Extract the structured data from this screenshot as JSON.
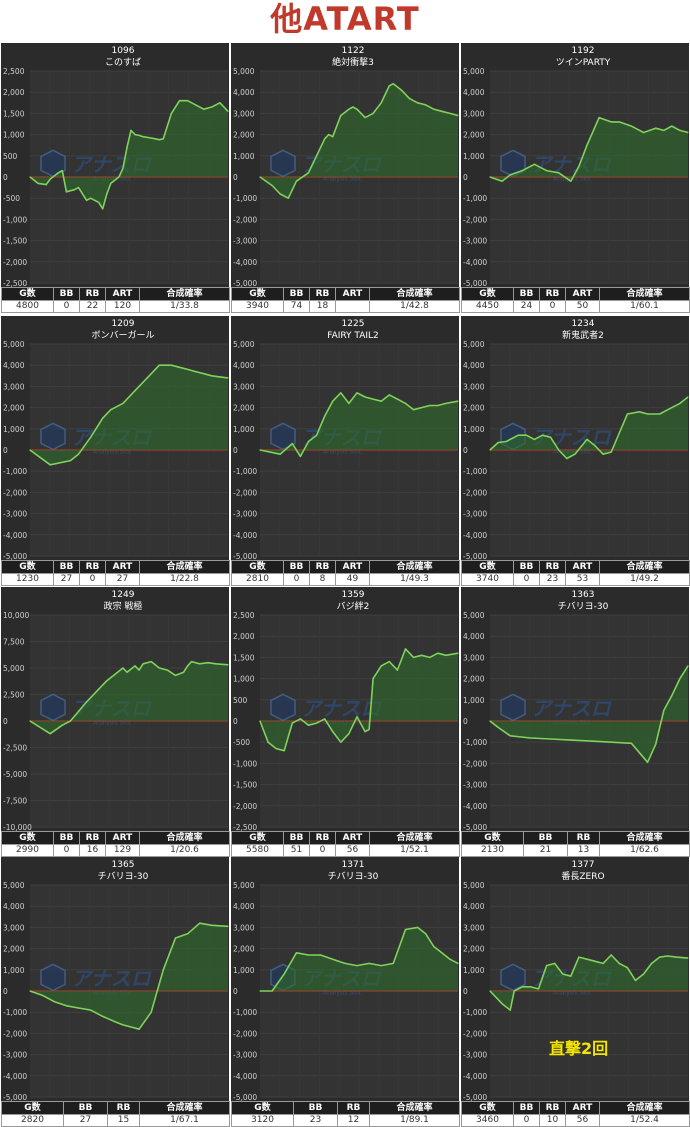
{
  "page": {
    "title": "他ATART"
  },
  "colors": {
    "background": "#2b2b2b",
    "grid": "#3f3f3f",
    "line": "#7fd35a",
    "fill": "#2f6a2b",
    "zero": "#c0392b",
    "title": "#c0392b",
    "note": "#f5e600"
  },
  "watermark": {
    "text": "アナスロ",
    "sub": "Analysis Slot"
  },
  "chart_data": [
    {
      "type": "area",
      "machine_no": "1096",
      "machine_name": "このすば",
      "ylim": [
        -2500,
        2500
      ],
      "ticks": [
        "2,500",
        "2,000",
        "1,500",
        "1,000",
        "500",
        "0",
        "-500",
        "-1,000",
        "-1,500",
        "-2,000",
        "-2,500"
      ],
      "x": [
        0,
        2,
        4,
        5,
        7,
        8,
        9,
        11,
        12,
        14,
        15,
        17,
        18,
        19,
        20,
        22,
        23,
        24,
        25,
        26,
        27,
        28,
        30,
        32,
        33,
        35,
        37,
        39,
        41,
        43,
        45,
        47,
        49
      ],
      "y": [
        0,
        -150,
        -180,
        -50,
        100,
        150,
        -350,
        -300,
        -250,
        -550,
        -500,
        -600,
        -750,
        -400,
        -150,
        0,
        200,
        700,
        1100,
        1000,
        980,
        950,
        920,
        880,
        900,
        1500,
        1800,
        1800,
        1700,
        1600,
        1650,
        1750,
        1550
      ],
      "stats": {
        "headers": [
          "G数",
          "BB",
          "RB",
          "ART",
          "合成確率"
        ],
        "values": [
          "4800",
          "0",
          "22",
          "120",
          "1/33.8"
        ]
      }
    },
    {
      "type": "area",
      "machine_no": "1122",
      "machine_name": "絶対衝撃3",
      "ylim": [
        -5000,
        5000
      ],
      "ticks": [
        "5,000",
        "4,000",
        "3,000",
        "2,000",
        "1,000",
        "0",
        "-1,000",
        "-2,000",
        "-3,000",
        "-4,000",
        "-5,000"
      ],
      "x": [
        0,
        3,
        5,
        7,
        9,
        12,
        14,
        16,
        17,
        18,
        20,
        22,
        23,
        24,
        26,
        28,
        30,
        32,
        33,
        35,
        37,
        39,
        41,
        43,
        45,
        47,
        49
      ],
      "y": [
        0,
        -400,
        -800,
        -1000,
        -200,
        200,
        1000,
        1800,
        2000,
        1900,
        2900,
        3200,
        3300,
        3200,
        2800,
        3000,
        3500,
        4300,
        4400,
        4100,
        3700,
        3500,
        3400,
        3200,
        3100,
        3000,
        2900
      ],
      "stats": {
        "headers": [
          "G数",
          "BB",
          "RB",
          "ART",
          "合成確率"
        ],
        "values": [
          "3940",
          "74",
          "18",
          "",
          "1/42.8"
        ]
      }
    },
    {
      "type": "area",
      "machine_no": "1192",
      "machine_name": "ツインPARTY",
      "ylim": [
        -5000,
        5000
      ],
      "ticks": [
        "5,000",
        "4,000",
        "3,000",
        "2,000",
        "1,000",
        "0",
        "-1,000",
        "-2,000",
        "-3,000",
        "-4,000",
        "-5,000"
      ],
      "x": [
        0,
        3,
        5,
        8,
        11,
        14,
        17,
        20,
        22,
        24,
        27,
        30,
        32,
        35,
        38,
        41,
        43,
        45,
        47,
        49
      ],
      "y": [
        0,
        -200,
        100,
        300,
        600,
        300,
        200,
        -200,
        500,
        1500,
        2800,
        2600,
        2600,
        2400,
        2100,
        2300,
        2200,
        2400,
        2200,
        2100
      ],
      "stats": {
        "headers": [
          "G数",
          "BB",
          "RB",
          "ART",
          "合成確率"
        ],
        "values": [
          "4450",
          "24",
          "0",
          "50",
          "1/60.1"
        ]
      }
    },
    {
      "type": "area",
      "machine_no": "1209",
      "machine_name": "ボンバーガール",
      "ylim": [
        -5000,
        5000
      ],
      "ticks": [
        "5,000",
        "4,000",
        "3,000",
        "2,000",
        "1,000",
        "0",
        "-1,000",
        "-2,000",
        "-3,000",
        "-4,000",
        "-5,000"
      ],
      "x": [
        0,
        5,
        10,
        12,
        15,
        18,
        20,
        23,
        26,
        29,
        32,
        35,
        37,
        39,
        41,
        43,
        45,
        47,
        49
      ],
      "y": [
        0,
        -700,
        -500,
        -200,
        600,
        1500,
        1900,
        2200,
        2800,
        3400,
        4000,
        4000,
        3900,
        3800,
        3700,
        3600,
        3500,
        3450,
        3400
      ],
      "stats": {
        "headers": [
          "G数",
          "BB",
          "RB",
          "ART",
          "合成確率"
        ],
        "values": [
          "1230",
          "27",
          "0",
          "27",
          "1/22.8"
        ]
      }
    },
    {
      "type": "area",
      "machine_no": "1225",
      "machine_name": "FAIRY TAIL2",
      "ylim": [
        -5000,
        5000
      ],
      "ticks": [
        "5,000",
        "4,000",
        "3,000",
        "2,000",
        "1,000",
        "0",
        "-1,000",
        "-2,000",
        "-3,000",
        "-4,000",
        "-5,000"
      ],
      "x": [
        0,
        5,
        8,
        10,
        12,
        14,
        16,
        18,
        20,
        22,
        24,
        26,
        28,
        30,
        32,
        34,
        36,
        38,
        40,
        42,
        44,
        46,
        49
      ],
      "y": [
        0,
        -200,
        300,
        -300,
        400,
        700,
        1600,
        2300,
        2700,
        2200,
        2700,
        2500,
        2400,
        2300,
        2600,
        2400,
        2200,
        1900,
        2000,
        2100,
        2100,
        2200,
        2300
      ],
      "stats": {
        "headers": [
          "G数",
          "BB",
          "RB",
          "ART",
          "合成確率"
        ],
        "values": [
          "2810",
          "0",
          "8",
          "49",
          "1/49.3"
        ]
      }
    },
    {
      "type": "area",
      "machine_no": "1234",
      "machine_name": "新鬼武者2",
      "ylim": [
        -5000,
        5000
      ],
      "ticks": [
        "5,000",
        "4,000",
        "3,000",
        "2,000",
        "1,000",
        "0",
        "-1,000",
        "-2,000",
        "-3,000",
        "-4,000",
        "-5,000"
      ],
      "x": [
        0,
        2,
        4,
        7,
        9,
        11,
        13,
        15,
        17,
        19,
        21,
        24,
        26,
        28,
        30,
        32,
        34,
        37,
        39,
        42,
        45,
        47,
        49
      ],
      "y": [
        0,
        350,
        400,
        700,
        700,
        500,
        700,
        600,
        0,
        -400,
        -200,
        500,
        200,
        -200,
        -100,
        800,
        1700,
        1800,
        1700,
        1700,
        2000,
        2200,
        2500
      ],
      "stats": {
        "headers": [
          "G数",
          "BB",
          "RB",
          "ART",
          "合成確率"
        ],
        "values": [
          "3740",
          "0",
          "23",
          "53",
          "1/49.2"
        ]
      }
    },
    {
      "type": "area",
      "machine_no": "1249",
      "machine_name": "政宗 戦極",
      "ylim": [
        -10000,
        10000
      ],
      "ticks": [
        "10,000",
        "7,500",
        "5,000",
        "2,500",
        "0",
        "-2,500",
        "-5,000",
        "-7,500",
        "-10,000"
      ],
      "x": [
        0,
        5,
        8,
        10,
        14,
        17,
        19,
        21,
        23,
        24,
        26,
        27,
        28,
        30,
        32,
        34,
        36,
        38,
        39,
        40,
        42,
        44,
        46,
        49
      ],
      "y": [
        0,
        -1200,
        -400,
        0,
        1800,
        3000,
        3800,
        4400,
        5000,
        4600,
        5200,
        4800,
        5400,
        5600,
        5000,
        4800,
        4300,
        4600,
        5200,
        5600,
        5400,
        5500,
        5400,
        5300
      ],
      "stats": {
        "headers": [
          "G数",
          "BB",
          "RB",
          "ART",
          "合成確率"
        ],
        "values": [
          "2990",
          "0",
          "16",
          "129",
          "1/20.6"
        ]
      }
    },
    {
      "type": "area",
      "machine_no": "1359",
      "machine_name": "バジ絆2",
      "ylim": [
        -2500,
        2500
      ],
      "ticks": [
        "2,500",
        "2,000",
        "1,500",
        "1,000",
        "500",
        "0",
        "-500",
        "-1,000",
        "-1,500",
        "-2,000",
        "-2,500"
      ],
      "x": [
        0,
        2,
        4,
        6,
        8,
        10,
        12,
        14,
        16,
        18,
        20,
        22,
        24,
        26,
        27,
        28,
        30,
        32,
        34,
        36,
        38,
        40,
        42,
        44,
        46,
        49
      ],
      "y": [
        0,
        -500,
        -650,
        -700,
        -50,
        50,
        -100,
        -50,
        50,
        -250,
        -500,
        -300,
        100,
        -250,
        -200,
        1000,
        1300,
        1400,
        1200,
        1700,
        1500,
        1550,
        1500,
        1600,
        1550,
        1600
      ],
      "stats": {
        "headers": [
          "G数",
          "BB",
          "RB",
          "ART",
          "合成確率"
        ],
        "values": [
          "5580",
          "51",
          "0",
          "56",
          "1/52.1"
        ]
      }
    },
    {
      "type": "area",
      "machine_no": "1363",
      "machine_name": "チバリヨ-30",
      "ylim": [
        -5000,
        5000
      ],
      "ticks": [
        "5,000",
        "4,000",
        "3,000",
        "2,000",
        "1,000",
        "0",
        "-1,000",
        "-2,000",
        "-3,000",
        "-4,000",
        "-5,000"
      ],
      "x": [
        0,
        2,
        5,
        10,
        15,
        20,
        25,
        30,
        35,
        37,
        39,
        41,
        43,
        45,
        47,
        49
      ],
      "y": [
        0,
        -300,
        -700,
        -800,
        -850,
        -900,
        -950,
        -1000,
        -1050,
        -1500,
        -1950,
        -1100,
        500,
        1200,
        2000,
        2600
      ],
      "stats": {
        "headers": [
          "G数",
          "BB",
          "RB",
          "合成確率"
        ],
        "values": [
          "2130",
          "21",
          "13",
          "1/62.6"
        ]
      }
    },
    {
      "type": "area",
      "machine_no": "1365",
      "machine_name": "チバリヨ-30",
      "ylim": [
        -5000,
        5000
      ],
      "ticks": [
        "5,000",
        "4,000",
        "3,000",
        "2,000",
        "1,000",
        "0",
        "-1,000",
        "-2,000",
        "-3,000",
        "-4,000",
        "-5,000"
      ],
      "x": [
        0,
        3,
        6,
        9,
        12,
        15,
        18,
        21,
        23,
        25,
        27,
        30,
        33,
        36,
        39,
        42,
        45,
        49
      ],
      "y": [
        0,
        -200,
        -500,
        -700,
        -800,
        -900,
        -1200,
        -1450,
        -1600,
        -1700,
        -1800,
        -1000,
        1000,
        2500,
        2700,
        3200,
        3100,
        3050
      ],
      "stats": {
        "headers": [
          "G数",
          "BB",
          "RB",
          "合成確率"
        ],
        "values": [
          "2820",
          "27",
          "15",
          "1/67.1"
        ]
      }
    },
    {
      "type": "area",
      "machine_no": "1371",
      "machine_name": "チバリヨ-30",
      "ylim": [
        -5000,
        5000
      ],
      "ticks": [
        "5,000",
        "4,000",
        "3,000",
        "2,000",
        "1,000",
        "0",
        "-1,000",
        "-2,000",
        "-3,000",
        "-4,000",
        "-5,000"
      ],
      "x": [
        0,
        3,
        6,
        9,
        12,
        15,
        18,
        21,
        24,
        27,
        30,
        33,
        36,
        39,
        41,
        43,
        45,
        47,
        49
      ],
      "y": [
        0,
        0,
        800,
        1800,
        1700,
        1700,
        1500,
        1300,
        1200,
        1300,
        1200,
        1300,
        2900,
        3000,
        2700,
        2100,
        1800,
        1500,
        1300
      ],
      "stats": {
        "headers": [
          "G数",
          "BB",
          "RB",
          "合成確率"
        ],
        "values": [
          "3120",
          "23",
          "12",
          "1/89.1"
        ]
      }
    },
    {
      "type": "area",
      "machine_no": "1377",
      "machine_name": "番長ZERO",
      "ylim": [
        -5000,
        5000
      ],
      "ticks": [
        "5,000",
        "4,000",
        "3,000",
        "2,000",
        "1,000",
        "0",
        "-1,000",
        "-2,000",
        "-3,000",
        "-4,000",
        "-5,000"
      ],
      "x": [
        0,
        3,
        5,
        6,
        8,
        10,
        12,
        14,
        16,
        18,
        20,
        22,
        24,
        26,
        28,
        30,
        32,
        34,
        36,
        38,
        40,
        42,
        44,
        46,
        49
      ],
      "y": [
        0,
        -600,
        -900,
        0,
        200,
        200,
        100,
        1200,
        1300,
        800,
        700,
        1600,
        1500,
        1400,
        1300,
        1700,
        1300,
        1100,
        500,
        800,
        1300,
        1600,
        1650,
        1600,
        1550
      ],
      "stats": {
        "headers": [
          "G数",
          "BB",
          "RB",
          "ART",
          "合成確率"
        ],
        "values": [
          "3460",
          "0",
          "10",
          "56",
          "1/52.4"
        ]
      },
      "note": "直撃2回"
    }
  ]
}
